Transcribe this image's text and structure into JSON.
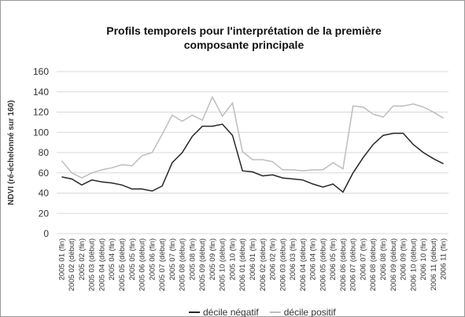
{
  "chart_data": {
    "type": "line",
    "title": "Profils temporels pour l'interprétation de la première composante principale",
    "y_label": "NDVI (ré-échelonné sur 160)",
    "categories": [
      "2005 01 (fin)",
      "2005 02 (début)",
      "2005 02 (fin)",
      "2005 03 (début)",
      "2005 04 (début)",
      "2005 04 (fin)",
      "2005 05 (début)",
      "2005 05 (fin)",
      "2005 06 (début)",
      "2005 06 (fin)",
      "2005 07 (début)",
      "2005 07 (fin)",
      "2005 08 (début)",
      "2005 08 (fin)",
      "2005 09 (début)",
      "2005 09 (fin)",
      "2005 10 (début)",
      "2005 10 (fin)",
      "2006 01 (début)",
      "2006 01 (fin)",
      "2006 02 (début)",
      "2006 02 (fin)",
      "2006 03 (début)",
      "2006 03 (fin)",
      "2006 04 (début)",
      "2006 04 (fin)",
      "2006 05 (début)",
      "2006 05 (fin)",
      "2006 06 (début)",
      "2006 07 (début)",
      "2006 07 (fin)",
      "2006 08 (début)",
      "2006 08 (fin)",
      "2006 09 (début)",
      "2006 09 (fin)",
      "2006 10 (début)",
      "2006 10 (fin)",
      "2006 11 (début)",
      "2006 11 (fin)"
    ],
    "series": [
      {
        "name": "décile négatif",
        "color": "#262626",
        "values": [
          56,
          54,
          48,
          53,
          51,
          50,
          48,
          44,
          44,
          42,
          47,
          70,
          80,
          96,
          106,
          106,
          108,
          97,
          62,
          61,
          57,
          58,
          55,
          54,
          53,
          49,
          46,
          49,
          41,
          60,
          75,
          88,
          97,
          99,
          99,
          88,
          80,
          74,
          69
        ]
      },
      {
        "name": "décile positif",
        "color": "#bdbdbd",
        "values": [
          72,
          60,
          55,
          60,
          63,
          65,
          68,
          67,
          77,
          80,
          98,
          117,
          111,
          117,
          112,
          135,
          116,
          129,
          81,
          73,
          73,
          71,
          63,
          63,
          62,
          63,
          63,
          70,
          64,
          126,
          125,
          118,
          115,
          126,
          126,
          128,
          125,
          120,
          114
        ]
      }
    ],
    "ylim": [
      0,
      160
    ],
    "yticks": [
      0,
      20,
      40,
      60,
      80,
      100,
      120,
      140,
      160
    ],
    "grid": true,
    "legend": "bottom"
  }
}
